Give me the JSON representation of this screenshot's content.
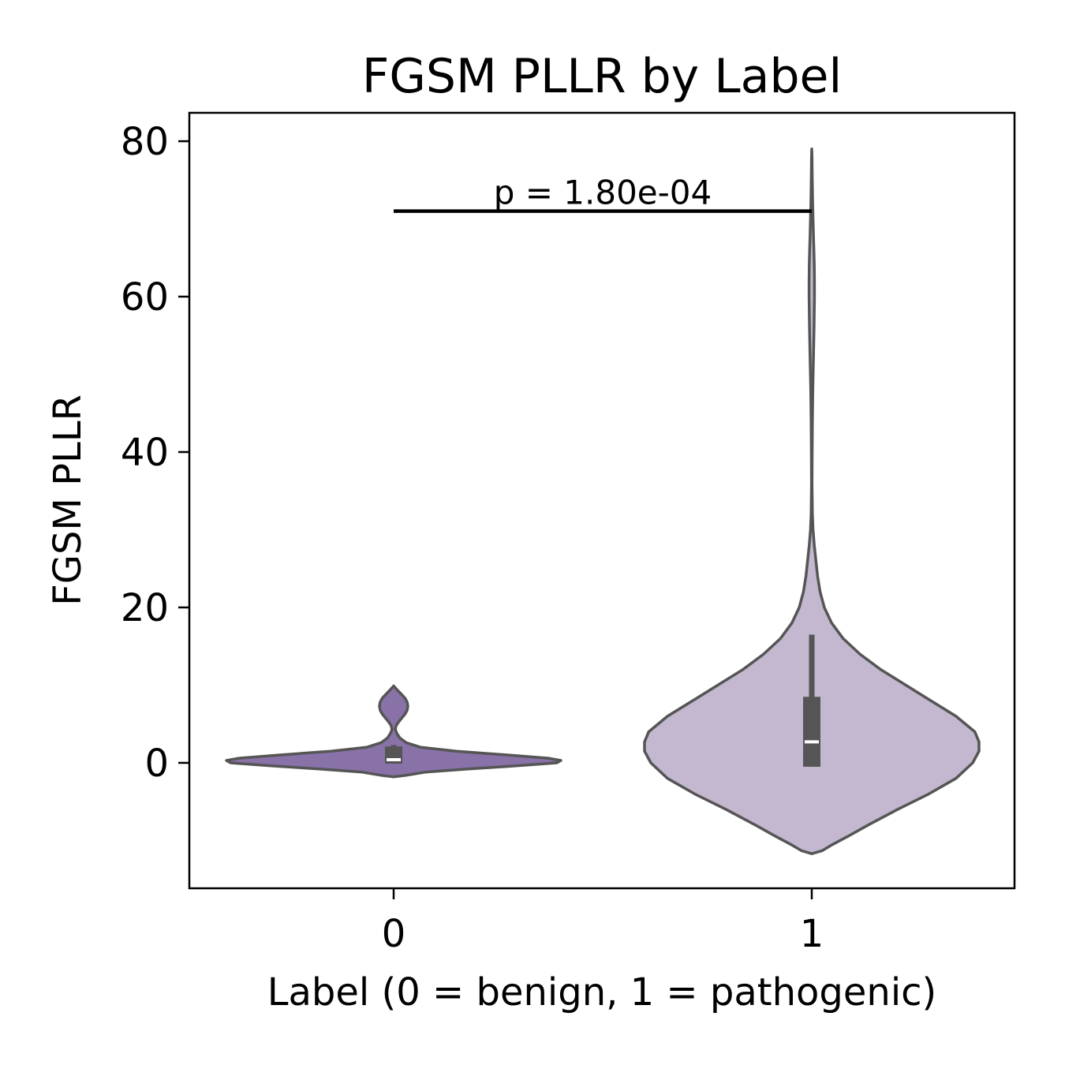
{
  "chart_data": {
    "type": "violin",
    "title": "FGSM PLLR by Label",
    "xlabel": "Label (0 = benign, 1 = pathogenic)",
    "ylabel": "FGSM PLLR",
    "categories": [
      "0",
      "1"
    ],
    "yticks": [
      "0",
      "20",
      "40",
      "60",
      "80"
    ],
    "ylim": [
      -16,
      84
    ],
    "grid": false,
    "colors": {
      "0": "#8872a8",
      "1": "#c3b8cf",
      "outline": "#555555",
      "box": "#555555",
      "median": "#ffffff"
    },
    "violins": [
      {
        "category": "0",
        "min": -1.8,
        "max": 9.9,
        "whisker_low": -0.1,
        "whisker_high": 2.3,
        "q1": -0.1,
        "q3": 2.1,
        "median": 0.4,
        "density": [
          [
            -1.8,
            0.0
          ],
          [
            -1.6,
            0.06
          ],
          [
            -1.2,
            0.15
          ],
          [
            -0.8,
            0.35
          ],
          [
            -0.4,
            0.58
          ],
          [
            0.0,
            0.78
          ],
          [
            0.3,
            0.8
          ],
          [
            0.6,
            0.74
          ],
          [
            1.0,
            0.55
          ],
          [
            1.5,
            0.3
          ],
          [
            2.0,
            0.13
          ],
          [
            2.6,
            0.06
          ],
          [
            3.2,
            0.03
          ],
          [
            3.8,
            0.015
          ],
          [
            4.3,
            0.008
          ],
          [
            4.8,
            0.012
          ],
          [
            5.3,
            0.025
          ],
          [
            5.8,
            0.04
          ],
          [
            6.3,
            0.055
          ],
          [
            6.8,
            0.065
          ],
          [
            7.3,
            0.068
          ],
          [
            7.8,
            0.065
          ],
          [
            8.3,
            0.055
          ],
          [
            8.8,
            0.038
          ],
          [
            9.3,
            0.02
          ],
          [
            9.9,
            0.0
          ]
        ]
      },
      {
        "category": "1",
        "min": -11.7,
        "max": 79.0,
        "whisker_low": -0.5,
        "whisker_high": 16.5,
        "q1": -0.5,
        "q3": 8.5,
        "median": 2.7,
        "density": [
          [
            -11.7,
            0.0
          ],
          [
            -11.3,
            0.05
          ],
          [
            -10.5,
            0.1
          ],
          [
            -9.5,
            0.17
          ],
          [
            -8.0,
            0.27
          ],
          [
            -6.0,
            0.41
          ],
          [
            -4.0,
            0.56
          ],
          [
            -2.0,
            0.69
          ],
          [
            0.0,
            0.77
          ],
          [
            1.5,
            0.8
          ],
          [
            2.7,
            0.8
          ],
          [
            4.0,
            0.78
          ],
          [
            6.0,
            0.69
          ],
          [
            8.0,
            0.57
          ],
          [
            10.0,
            0.45
          ],
          [
            12.0,
            0.33
          ],
          [
            14.0,
            0.23
          ],
          [
            16.0,
            0.15
          ],
          [
            18.0,
            0.095
          ],
          [
            20.0,
            0.06
          ],
          [
            22.0,
            0.04
          ],
          [
            24.0,
            0.028
          ],
          [
            26.0,
            0.02
          ],
          [
            28.0,
            0.012
          ],
          [
            30.0,
            0.006
          ],
          [
            32.0,
            0.003
          ],
          [
            36.0,
            0.001
          ],
          [
            40.0,
            0.002
          ],
          [
            44.0,
            0.003
          ],
          [
            48.0,
            0.005
          ],
          [
            52.0,
            0.008
          ],
          [
            56.0,
            0.011
          ],
          [
            60.0,
            0.013
          ],
          [
            62.0,
            0.013
          ],
          [
            64.0,
            0.012
          ],
          [
            66.0,
            0.01
          ],
          [
            68.0,
            0.008
          ],
          [
            70.0,
            0.006
          ],
          [
            72.0,
            0.004
          ],
          [
            74.0,
            0.003
          ],
          [
            76.0,
            0.002
          ],
          [
            78.0,
            0.001
          ],
          [
            79.0,
            0.0
          ]
        ]
      }
    ],
    "annotation": {
      "text": "p = 1.80e-04",
      "bracket_y": 71,
      "from": "0",
      "to": "1"
    }
  }
}
